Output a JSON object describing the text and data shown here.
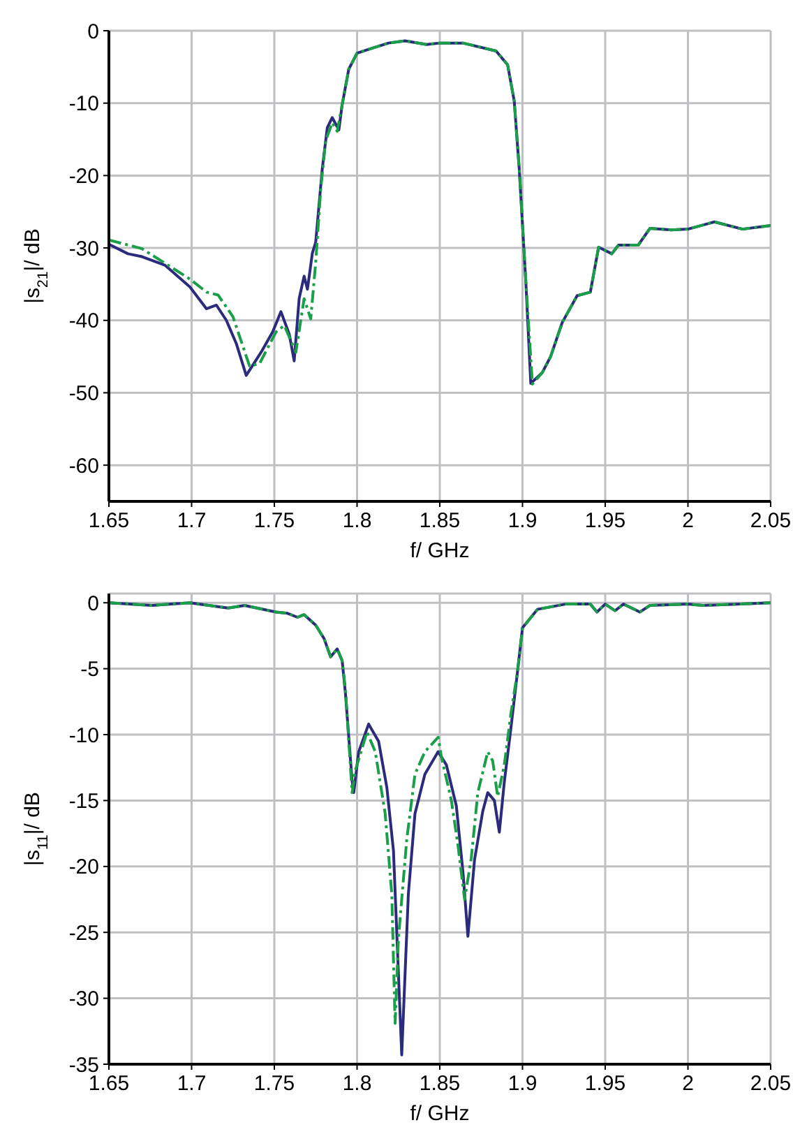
{
  "chart_data": [
    {
      "type": "line",
      "xlabel": "f/ GHz",
      "ylabel": "|s$_{21}$|/ dB",
      "xlim": [
        1.65,
        2.05
      ],
      "xticks": [
        1.65,
        1.7,
        1.75,
        1.8,
        1.85,
        1.9,
        1.95,
        2,
        2.05
      ],
      "ylim": [
        -65,
        0
      ],
      "yticks": [
        0,
        -10,
        -20,
        -30,
        -40,
        -50,
        -60
      ],
      "grid": true,
      "marker": "none",
      "series": [
        {
          "color": "#1a9e48",
          "line_style": "dashed",
          "x": [
            1.65,
            1.67,
            1.699,
            1.709,
            1.716,
            1.725,
            1.735,
            1.741,
            1.751,
            1.756,
            1.763,
            1.768,
            1.772,
            1.775,
            1.778,
            1.781,
            1.785,
            1.788,
            1.791,
            1.795,
            1.8,
            1.808,
            1.819,
            1.829,
            1.842,
            1.85,
            1.864,
            1.884,
            1.891,
            1.895,
            1.898,
            1.902,
            1.906,
            1.912,
            1.917,
            1.924,
            1.933,
            1.941,
            1.946,
            1.954,
            1.958,
            1.97,
            1.977,
            1.99,
            2.0,
            2.016,
            2.033,
            2.05
          ],
          "values": [
            -28.9,
            -30.1,
            -34.3,
            -36.1,
            -36.5,
            -39.5,
            -46.3,
            -46,
            -41.6,
            -40.7,
            -44.4,
            -37,
            -39.8,
            -32,
            -22,
            -15.2,
            -12.7,
            -13.9,
            -10.2,
            -5.3,
            -3.1,
            -2.5,
            -1.7,
            -1.4,
            -1.9,
            -1.7,
            -1.7,
            -2.8,
            -4.7,
            -9.7,
            -19,
            -34.6,
            -48.8,
            -47.2,
            -45,
            -40.3,
            -36.6,
            -36.1,
            -29.9,
            -30.8,
            -29.6,
            -29.6,
            -27.3,
            -27.5,
            -27.4,
            -26.4,
            -27.4,
            -26.9
          ]
        },
        {
          "color": "#2b2a7c",
          "line_style": "solid",
          "x": [
            1.65,
            1.6615,
            1.67,
            1.684,
            1.699,
            1.709,
            1.715,
            1.721,
            1.727,
            1.733,
            1.742,
            1.749,
            1.754,
            1.759,
            1.762,
            1.765,
            1.768,
            1.77,
            1.773,
            1.775,
            1.779,
            1.782,
            1.785,
            1.789,
            1.791,
            1.795,
            1.8,
            1.808,
            1.819,
            1.829,
            1.842,
            1.85,
            1.864,
            1.884,
            1.891,
            1.895,
            1.898,
            1.902,
            1.905,
            1.912,
            1.917,
            1.924,
            1.933,
            1.941,
            1.946,
            1.954,
            1.958,
            1.97,
            1.977,
            1.99,
            2.0,
            2.016,
            2.033,
            2.05
          ],
          "values": [
            -29.5,
            -30.8,
            -31.2,
            -32.4,
            -35.4,
            -38.4,
            -37.9,
            -40,
            -43.2,
            -47.6,
            -44.4,
            -41.6,
            -38.8,
            -41.9,
            -45.6,
            -37,
            -33.9,
            -35.7,
            -30.7,
            -29.2,
            -19,
            -13.4,
            -12,
            -13.7,
            -10.2,
            -5.3,
            -3.1,
            -2.5,
            -1.7,
            -1.4,
            -1.9,
            -1.7,
            -1.7,
            -2.8,
            -4.7,
            -9.7,
            -19,
            -34.6,
            -48.7,
            -47.2,
            -45,
            -40.3,
            -36.6,
            -36.1,
            -29.9,
            -30.8,
            -29.6,
            -29.6,
            -27.3,
            -27.5,
            -27.4,
            -26.4,
            -27.4,
            -26.9
          ]
        }
      ]
    },
    {
      "type": "line",
      "xlabel": "f/ GHz",
      "ylabel": "|s$_{11}$|/ dB",
      "xlim": [
        1.65,
        2.05
      ],
      "xticks": [
        1.65,
        1.7,
        1.75,
        1.8,
        1.85,
        1.9,
        1.95,
        2,
        2.05
      ],
      "ylim": [
        -35,
        0.7
      ],
      "yticks": [
        0,
        -5,
        -10,
        -15,
        -20,
        -25,
        -30,
        -35
      ],
      "grid": true,
      "marker": "none",
      "series": [
        {
          "color": "#1a9e48",
          "line_style": "dashed",
          "x": [
            1.65,
            1.676,
            1.699,
            1.722,
            1.732,
            1.751,
            1.758,
            1.764,
            1.768,
            1.775,
            1.78,
            1.784,
            1.788,
            1.791,
            1.793,
            1.797,
            1.799,
            1.806,
            1.811,
            1.817,
            1.821,
            1.823,
            1.825,
            1.83,
            1.835,
            1.841,
            1.849,
            1.851,
            1.857,
            1.861,
            1.865,
            1.869,
            1.873,
            1.879,
            1.882,
            1.885,
            1.889,
            1.893,
            1.897,
            1.9,
            1.909,
            1.926,
            1.941,
            1.945,
            1.95,
            1.956,
            1.961,
            1.971,
            1.977,
            2.0,
            2.009,
            2.05
          ],
          "values": [
            0,
            -0.2,
            0,
            -0.4,
            -0.2,
            -0.7,
            -0.8,
            -1.1,
            -0.9,
            -1.7,
            -2.7,
            -4.1,
            -3.5,
            -4.4,
            -6.6,
            -14.4,
            -12.7,
            -9.8,
            -11.3,
            -16,
            -22.1,
            -31.9,
            -25.5,
            -18,
            -13,
            -11.3,
            -10.2,
            -11.7,
            -15,
            -18.4,
            -22.5,
            -19.4,
            -14.4,
            -11.3,
            -12,
            -14.7,
            -12.3,
            -8.4,
            -5.2,
            -1.9,
            -0.5,
            -0.1,
            -0.1,
            -0.7,
            -0.1,
            -0.6,
            -0.1,
            -0.7,
            -0.2,
            -0.1,
            -0.2,
            0
          ]
        },
        {
          "color": "#2b2a7c",
          "line_style": "solid",
          "x": [
            1.65,
            1.676,
            1.699,
            1.722,
            1.732,
            1.751,
            1.758,
            1.764,
            1.768,
            1.775,
            1.78,
            1.784,
            1.788,
            1.791,
            1.793,
            1.797,
            1.798,
            1.801,
            1.807,
            1.813,
            1.818,
            1.822,
            1.827,
            1.831,
            1.835,
            1.841,
            1.849,
            1.854,
            1.86,
            1.864,
            1.867,
            1.871,
            1.876,
            1.879,
            1.883,
            1.886,
            1.889,
            1.893,
            1.897,
            1.9,
            1.909,
            1.926,
            1.941,
            1.945,
            1.95,
            1.956,
            1.961,
            1.971,
            1.977,
            2.0,
            2.009,
            2.05
          ],
          "values": [
            0,
            -0.2,
            0,
            -0.4,
            -0.2,
            -0.7,
            -0.8,
            -1.1,
            -0.9,
            -1.7,
            -2.7,
            -4.1,
            -3.5,
            -4.4,
            -6.9,
            -13.5,
            -14.4,
            -11.3,
            -9.2,
            -10.5,
            -14,
            -18.8,
            -34.3,
            -22.1,
            -16,
            -13,
            -11.3,
            -12.3,
            -15.4,
            -20.4,
            -25.3,
            -19.5,
            -15.8,
            -14.4,
            -15,
            -17.4,
            -13.6,
            -9.5,
            -5.2,
            -1.9,
            -0.5,
            -0.1,
            -0.1,
            -0.7,
            -0.1,
            -0.6,
            -0.1,
            -0.7,
            -0.2,
            -0.1,
            -0.2,
            0
          ]
        }
      ]
    }
  ]
}
